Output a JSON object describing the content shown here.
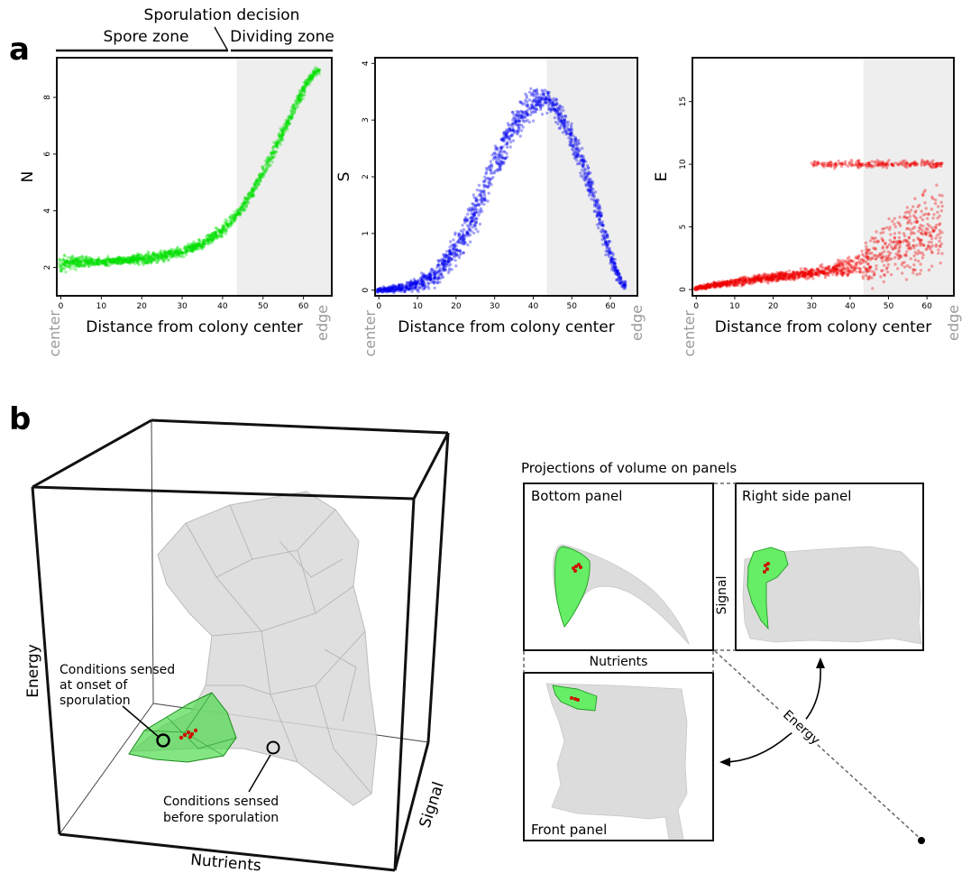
{
  "panel_labels": {
    "a": "a",
    "b": "b"
  },
  "zones": {
    "decision": "Sporulation decision",
    "spore": "Spore zone",
    "dividing": "Dividing zone"
  },
  "end_labels": {
    "left": "center",
    "right": "edge"
  },
  "colors": {
    "N": "#00e000",
    "S": "#0000ee",
    "E": "#ee0000",
    "shade": "#eeeeee",
    "green_volume": "#33dd33",
    "grey_volume": "#d8d8d8"
  },
  "chart_data": [
    {
      "type": "scatter",
      "xlabel": "Distance from colony center",
      "ylabel": "N",
      "x_ticks": [
        0,
        10,
        20,
        30,
        40,
        50,
        60
      ],
      "y_ticks": [
        2,
        4,
        6,
        8
      ],
      "xlim": [
        -1,
        67
      ],
      "ylim": [
        1.0,
        9.4
      ],
      "shaded_from_x": 43.5,
      "grid": false,
      "series": [
        {
          "color": "#00e000",
          "trend_x": [
            0,
            5,
            10,
            15,
            20,
            25,
            30,
            35,
            40,
            45,
            50,
            55,
            60,
            63
          ],
          "trend_y": [
            2.1,
            2.2,
            2.2,
            2.25,
            2.3,
            2.4,
            2.55,
            2.85,
            3.3,
            4.1,
            5.3,
            6.8,
            8.3,
            8.9
          ],
          "spread": [
            0.35,
            0.3,
            0.2,
            0.2,
            0.25,
            0.25,
            0.25,
            0.25,
            0.3,
            0.3,
            0.35,
            0.4,
            0.35,
            0.2
          ]
        }
      ]
    },
    {
      "type": "scatter",
      "xlabel": "Distance from colony center",
      "ylabel": "S",
      "x_ticks": [
        0,
        10,
        20,
        30,
        40,
        50,
        60
      ],
      "y_ticks": [
        0,
        1,
        2,
        3,
        4
      ],
      "xlim": [
        -1,
        67
      ],
      "ylim": [
        -0.1,
        4.1
      ],
      "shaded_from_x": 43.5,
      "grid": false,
      "series": [
        {
          "color": "#0000ee",
          "trend_x": [
            0,
            5,
            10,
            15,
            20,
            25,
            30,
            35,
            40,
            43,
            46,
            50,
            55,
            60,
            63
          ],
          "trend_y": [
            0.0,
            0.03,
            0.1,
            0.3,
            0.7,
            1.4,
            2.2,
            2.9,
            3.3,
            3.4,
            3.2,
            2.7,
            1.8,
            0.6,
            0.1
          ],
          "spread": [
            0.05,
            0.1,
            0.15,
            0.3,
            0.4,
            0.5,
            0.5,
            0.45,
            0.35,
            0.3,
            0.3,
            0.35,
            0.35,
            0.3,
            0.1
          ]
        }
      ]
    },
    {
      "type": "scatter",
      "xlabel": "Distance from colony center",
      "ylabel": "E",
      "x_ticks": [
        0,
        10,
        20,
        30,
        40,
        50,
        60
      ],
      "y_ticks": [
        0,
        5,
        10,
        15
      ],
      "xlim": [
        -1,
        67
      ],
      "ylim": [
        -0.5,
        18.5
      ],
      "shaded_from_x": 43.5,
      "grid": false,
      "series": [
        {
          "color": "#ee0000",
          "trend_x": [
            0,
            10,
            20,
            30,
            40,
            45,
            50,
            55,
            60,
            63
          ],
          "trend_y": [
            0.1,
            0.6,
            1.0,
            1.3,
            1.8,
            2.2,
            3.0,
            3.8,
            4.5,
            4.8
          ],
          "spread": [
            0.2,
            0.4,
            0.5,
            0.6,
            1.0,
            2.5,
            3.5,
            4.0,
            4.5,
            4.5
          ]
        }
      ]
    }
  ],
  "panel_b": {
    "box_axes": {
      "energy": "Energy",
      "nutrients": "Nutrients",
      "signal": "Signal"
    },
    "annotation_onset": [
      "Conditions sensed",
      "at onset of",
      "sporulation"
    ],
    "annotation_before": [
      "Conditions sensed",
      "before sporulation"
    ],
    "projections_title": "Projections of volume on panels",
    "bottom_panel": "Bottom panel",
    "right_side_panel": "Right side panel",
    "front_panel": "Front panel",
    "nutrients_label": "Nutrients",
    "signal_label": "Signal",
    "energy_label": "Energy"
  }
}
